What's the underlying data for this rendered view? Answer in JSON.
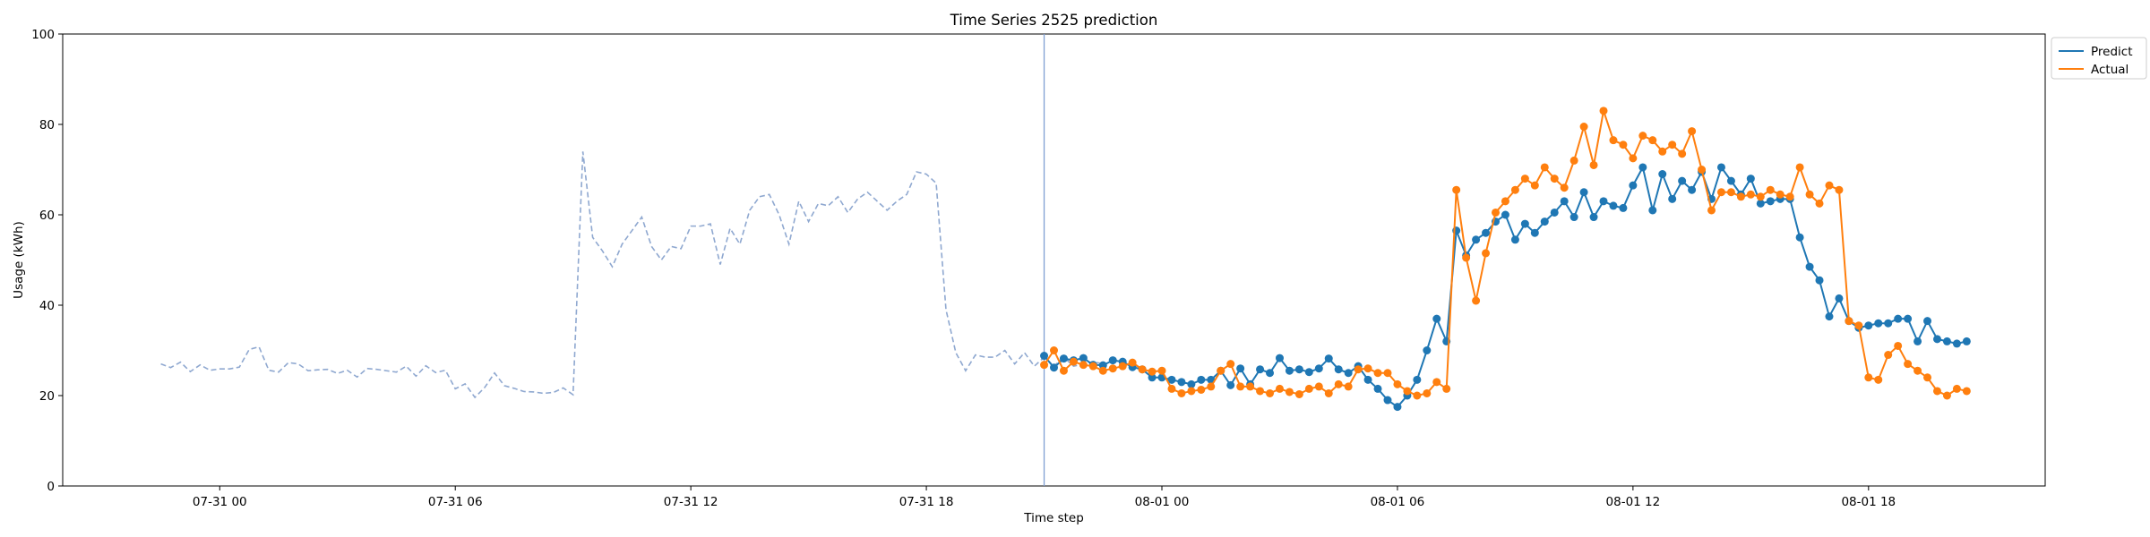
{
  "chart_data": {
    "type": "line",
    "title": "Time Series 2525 prediction",
    "xlabel": "Time step",
    "ylabel": "Usage (kWh)",
    "ylim": [
      0,
      100
    ],
    "xlim": [
      "2024-07-30 20:00",
      "2024-08-01 22:30"
    ],
    "x_ticks": [
      {
        "t": "2024-07-31 00:00",
        "label": "07-31 00"
      },
      {
        "t": "2024-07-31 06:00",
        "label": "07-31 06"
      },
      {
        "t": "2024-07-31 12:00",
        "label": "07-31 12"
      },
      {
        "t": "2024-07-31 18:00",
        "label": "07-31 18"
      },
      {
        "t": "2024-08-01 00:00",
        "label": "08-01 00"
      },
      {
        "t": "2024-08-01 06:00",
        "label": "08-01 06"
      },
      {
        "t": "2024-08-01 12:00",
        "label": "08-01 12"
      },
      {
        "t": "2024-08-01 18:00",
        "label": "08-01 18"
      }
    ],
    "y_ticks": [
      0,
      20,
      40,
      60,
      80,
      100
    ],
    "grid": false,
    "legend_position": "outside top-right",
    "forecast_start": "2024-07-31 21:00",
    "history": {
      "start": "2024-07-30 22:30",
      "interval_minutes": 15,
      "color": "#8fa8d0",
      "style": "dashed",
      "values": [
        27.0,
        26.2,
        27.4,
        25.3,
        26.8,
        25.6,
        25.9,
        25.9,
        26.3,
        30.2,
        30.8,
        25.6,
        25.2,
        27.3,
        27.0,
        25.5,
        25.7,
        25.8,
        24.9,
        25.6,
        24.1,
        26.0,
        25.8,
        25.5,
        25.2,
        26.5,
        24.3,
        26.6,
        25.1,
        25.6,
        21.5,
        22.6,
        19.6,
        21.8,
        25.0,
        22.2,
        21.6,
        20.9,
        20.8,
        20.5,
        20.7,
        21.7,
        20.2,
        74.0,
        55.0,
        52.0,
        48.5,
        53.5,
        56.5,
        59.5,
        53.0,
        50.0,
        53.0,
        52.5,
        57.5,
        57.5,
        58.0,
        49.0,
        57.0,
        53.5,
        61.0,
        64.0,
        64.5,
        60.0,
        53.5,
        63.0,
        58.5,
        62.5,
        62.0,
        64.0,
        60.5,
        63.5,
        65.0,
        63.0,
        61.0,
        63.0,
        64.5,
        69.5,
        69.0,
        67.0,
        39.0,
        29.5,
        25.5,
        29.0,
        28.5,
        28.5,
        30.0,
        27.0,
        29.5,
        26.5,
        28.5,
        26.5,
        28.5,
        26.5,
        27.0,
        27.5,
        27.0
      ]
    },
    "series": [
      {
        "name": "Predict",
        "color": "#1f77b4",
        "start": "2024-07-31 21:00",
        "interval_minutes": 15,
        "values": [
          28.8,
          26.2,
          28.2,
          27.8,
          28.3,
          26.8,
          26.7,
          27.8,
          27.5,
          26.3,
          25.8,
          24.0,
          24.0,
          23.5,
          23.0,
          22.5,
          23.5,
          23.5,
          25.5,
          22.3,
          26.0,
          22.5,
          25.8,
          25.0,
          28.3,
          25.5,
          25.8,
          25.2,
          26.0,
          28.2,
          25.8,
          25.0,
          26.5,
          23.5,
          21.5,
          19.0,
          17.5,
          20.0,
          23.5,
          30.0,
          37.0,
          32.0,
          56.5,
          51.0,
          54.5,
          56.0,
          58.5,
          60.0,
          54.5,
          58.0,
          56.0,
          58.5,
          60.5,
          63.0,
          59.5,
          65.0,
          59.5,
          63.0,
          62.0,
          61.5,
          66.5,
          70.5,
          61.0,
          69.0,
          63.5,
          67.5,
          65.5,
          69.5,
          63.5,
          70.5,
          67.5,
          64.5,
          68.0,
          62.5,
          63.0,
          63.5,
          63.5,
          55.0,
          48.5,
          45.5,
          37.5,
          41.5,
          36.5,
          35.0,
          35.5,
          36.0,
          36.0,
          37.0,
          37.0,
          32.0,
          36.5,
          32.5,
          32.0,
          31.5,
          32.0
        ]
      },
      {
        "name": "Actual",
        "color": "#ff7f0e",
        "start": "2024-07-31 21:00",
        "interval_minutes": 15,
        "values": [
          26.8,
          30.0,
          25.5,
          27.5,
          26.8,
          26.5,
          25.5,
          26.0,
          26.5,
          27.3,
          25.8,
          25.3,
          25.5,
          21.5,
          20.5,
          21.0,
          21.3,
          22.0,
          25.5,
          27.0,
          22.0,
          22.0,
          21.0,
          20.5,
          21.5,
          20.8,
          20.3,
          21.5,
          22.0,
          20.5,
          22.5,
          22.0,
          25.8,
          26.0,
          25.0,
          25.0,
          22.5,
          21.0,
          20.0,
          20.5,
          23.0,
          21.5,
          65.5,
          50.5,
          41.0,
          51.5,
          60.5,
          63.0,
          65.5,
          68.0,
          66.5,
          70.5,
          68.0,
          66.0,
          72.0,
          79.5,
          71.0,
          83.0,
          76.5,
          75.5,
          72.5,
          77.5,
          76.5,
          74.0,
          75.5,
          73.5,
          78.5,
          70.0,
          61.0,
          65.0,
          65.0,
          64.0,
          64.5,
          64.0,
          65.5,
          64.5,
          64.0,
          70.5,
          64.5,
          62.5,
          66.5,
          65.5,
          36.5,
          35.5,
          24.0,
          23.5,
          29.0,
          31.0,
          27.0,
          25.5,
          24.0,
          21.0,
          20.0,
          21.5,
          21.0
        ]
      }
    ]
  }
}
